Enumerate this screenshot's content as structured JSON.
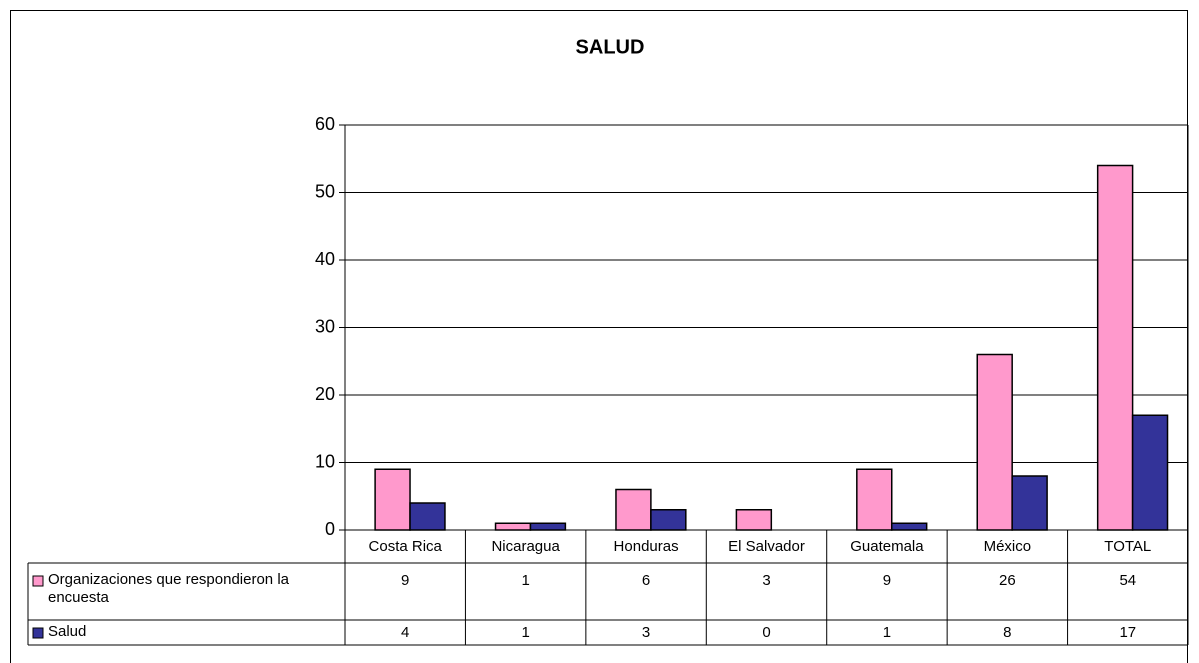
{
  "chart_data": {
    "type": "bar",
    "title": "SALUD",
    "categories": [
      "Costa Rica",
      "Nicaragua",
      "Honduras",
      "El Salvador",
      "Guatemala",
      "México",
      "TOTAL"
    ],
    "series": [
      {
        "name": "Organizaciones que respondieron la encuesta",
        "color": "#ff99cc",
        "values": [
          9,
          1,
          6,
          3,
          9,
          26,
          54
        ]
      },
      {
        "name": "Salud",
        "color": "#333399",
        "values": [
          4,
          1,
          3,
          0,
          1,
          8,
          17
        ]
      }
    ],
    "ylim": [
      0,
      60
    ],
    "yticks": [
      0,
      10,
      20,
      30,
      40,
      50,
      60
    ],
    "grid": true
  }
}
